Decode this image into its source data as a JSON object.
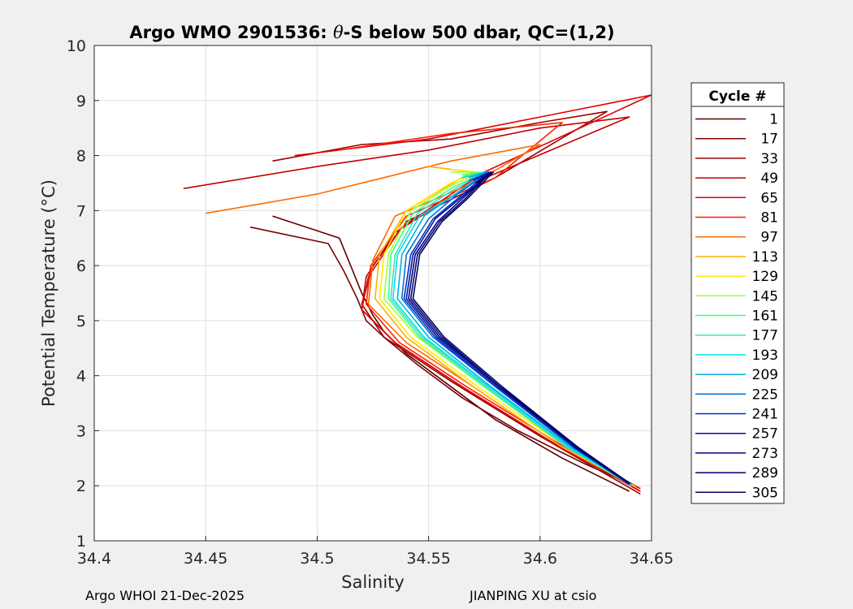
{
  "chart_data": {
    "type": "line",
    "title_prefix": "Argo WMO 2901536: ",
    "title_theta": "θ",
    "title_suffix": "-S below 500 dbar,  QC=(1,2)",
    "xlabel": "Salinity",
    "ylabel": "Potential Temperature (°C)",
    "xlim": [
      34.4,
      34.65
    ],
    "ylim": [
      1,
      10
    ],
    "xticks": [
      34.4,
      34.45,
      34.5,
      34.55,
      34.6,
      34.65
    ],
    "xtick_labels": [
      "34.4",
      "34.45",
      "34.5",
      "34.55",
      "34.6",
      "34.65"
    ],
    "yticks": [
      1,
      2,
      3,
      4,
      5,
      6,
      7,
      8,
      9,
      10
    ],
    "ytick_labels": [
      "1",
      "2",
      "3",
      "4",
      "5",
      "6",
      "7",
      "8",
      "9",
      "10"
    ],
    "grid": true,
    "legend_title": "Cycle #",
    "legend_position": "outside-right",
    "series": [
      {
        "name": "1",
        "color": "#5a0000",
        "salinity": [
          34.48,
          34.51,
          34.515,
          34.52,
          34.525,
          34.53,
          34.54,
          34.56,
          34.58,
          34.61,
          34.64
        ],
        "theta": [
          6.9,
          6.5,
          6.0,
          5.5,
          5.1,
          4.8,
          4.4,
          3.8,
          3.2,
          2.5,
          1.9
        ]
      },
      {
        "name": "17",
        "color": "#7a0000",
        "salinity": [
          34.47,
          34.505,
          34.512,
          34.518,
          34.522,
          34.53,
          34.545,
          34.565,
          34.59,
          34.62,
          34.645
        ],
        "theta": [
          6.7,
          6.4,
          5.9,
          5.4,
          5.0,
          4.7,
          4.2,
          3.6,
          3.0,
          2.4,
          1.95
        ]
      },
      {
        "name": "33",
        "color": "#9c0000",
        "salinity": [
          34.48,
          34.52,
          34.56,
          34.6,
          34.63,
          34.58,
          34.54,
          34.525,
          34.52,
          34.53,
          34.56,
          34.6,
          34.645
        ],
        "theta": [
          7.9,
          8.2,
          8.3,
          8.6,
          8.8,
          7.6,
          6.8,
          6.0,
          5.3,
          4.7,
          3.9,
          2.9,
          1.85
        ]
      },
      {
        "name": "49",
        "color": "#c00000",
        "salinity": [
          34.44,
          34.5,
          34.55,
          34.6,
          34.64,
          34.57,
          34.535,
          34.522,
          34.52,
          34.535,
          34.565,
          34.605,
          34.645
        ],
        "theta": [
          7.4,
          7.8,
          8.1,
          8.5,
          8.7,
          7.5,
          6.6,
          5.8,
          5.2,
          4.6,
          3.8,
          2.8,
          1.9
        ]
      },
      {
        "name": "65",
        "color": "#e00000",
        "salinity": [
          34.49,
          34.55,
          34.6,
          34.65,
          34.575,
          34.538,
          34.523,
          34.52,
          34.535,
          34.565,
          34.605,
          34.645
        ],
        "theta": [
          8.0,
          8.3,
          8.7,
          9.1,
          7.7,
          6.7,
          5.8,
          5.2,
          4.6,
          3.8,
          2.8,
          1.9
        ]
      },
      {
        "name": "81",
        "color": "#ff2000",
        "salinity": [
          34.51,
          34.56,
          34.61,
          34.58,
          34.54,
          34.524,
          34.522,
          34.537,
          34.567,
          34.607,
          34.645
        ],
        "theta": [
          8.1,
          8.4,
          8.6,
          7.6,
          6.9,
          6.0,
          5.3,
          4.6,
          3.8,
          2.8,
          1.95
        ]
      },
      {
        "name": "97",
        "color": "#ff6a00",
        "salinity": [
          34.45,
          34.5,
          34.53,
          34.56,
          34.6,
          34.57,
          34.535,
          34.525,
          34.523,
          34.54,
          34.57,
          34.61,
          34.643
        ],
        "theta": [
          6.95,
          7.3,
          7.6,
          7.9,
          8.2,
          7.5,
          6.9,
          6.1,
          5.3,
          4.6,
          3.8,
          2.7,
          1.98
        ]
      },
      {
        "name": "113",
        "color": "#ffb000",
        "salinity": [
          34.55,
          34.57,
          34.565,
          34.54,
          34.528,
          34.526,
          34.54,
          34.57,
          34.61,
          34.643
        ],
        "theta": [
          7.8,
          7.7,
          7.6,
          7.0,
          6.2,
          5.4,
          4.7,
          3.8,
          2.7,
          1.98
        ]
      },
      {
        "name": "129",
        "color": "#ffee00",
        "salinity": [
          34.56,
          34.572,
          34.56,
          34.54,
          34.53,
          34.528,
          34.542,
          34.572,
          34.612,
          34.642
        ],
        "theta": [
          7.75,
          7.7,
          7.5,
          7.0,
          6.2,
          5.4,
          4.7,
          3.8,
          2.7,
          2.0
        ]
      },
      {
        "name": "145",
        "color": "#a0ff40",
        "salinity": [
          34.56,
          34.573,
          34.56,
          34.542,
          34.532,
          34.53,
          34.545,
          34.575,
          34.612,
          34.642
        ],
        "theta": [
          7.7,
          7.7,
          7.45,
          7.0,
          6.2,
          5.4,
          4.7,
          3.8,
          2.7,
          2.0
        ]
      },
      {
        "name": "161",
        "color": "#40ff80",
        "salinity": [
          34.565,
          34.575,
          34.56,
          34.543,
          34.533,
          34.532,
          34.546,
          34.575,
          34.612,
          34.641
        ],
        "theta": [
          7.65,
          7.7,
          7.4,
          6.95,
          6.2,
          5.4,
          4.7,
          3.8,
          2.7,
          2.0
        ]
      },
      {
        "name": "177",
        "color": "#40e0c0",
        "salinity": [
          34.565,
          34.575,
          34.56,
          34.545,
          34.535,
          34.533,
          34.547,
          34.576,
          34.612,
          34.641
        ],
        "theta": [
          7.6,
          7.7,
          7.35,
          6.95,
          6.2,
          5.4,
          4.7,
          3.8,
          2.7,
          2.02
        ]
      },
      {
        "name": "193",
        "color": "#00e0f0",
        "salinity": [
          34.565,
          34.576,
          34.562,
          34.546,
          34.536,
          34.534,
          34.548,
          34.577,
          34.613,
          34.641
        ],
        "theta": [
          7.6,
          7.7,
          7.3,
          6.9,
          6.2,
          5.4,
          4.7,
          3.8,
          2.7,
          2.02
        ]
      },
      {
        "name": "209",
        "color": "#00b0e0",
        "salinity": [
          34.568,
          34.576,
          34.562,
          34.548,
          34.538,
          34.536,
          34.55,
          34.578,
          34.614,
          34.641
        ],
        "theta": [
          7.6,
          7.7,
          7.3,
          6.9,
          6.2,
          5.4,
          4.7,
          3.8,
          2.7,
          2.02
        ]
      },
      {
        "name": "225",
        "color": "#0070e0",
        "salinity": [
          34.568,
          34.577,
          34.563,
          34.55,
          34.54,
          34.538,
          34.552,
          34.58,
          34.615,
          34.641
        ],
        "theta": [
          7.55,
          7.7,
          7.3,
          6.85,
          6.2,
          5.4,
          4.7,
          3.8,
          2.7,
          2.03
        ]
      },
      {
        "name": "241",
        "color": "#0030c0",
        "salinity": [
          34.57,
          34.577,
          34.564,
          34.552,
          34.542,
          34.539,
          34.553,
          34.58,
          34.615,
          34.64
        ],
        "theta": [
          7.55,
          7.7,
          7.25,
          6.85,
          6.2,
          5.4,
          4.7,
          3.8,
          2.7,
          2.03
        ]
      },
      {
        "name": "257",
        "color": "#0010a0",
        "salinity": [
          34.57,
          34.578,
          34.565,
          34.553,
          34.543,
          34.54,
          34.554,
          34.581,
          34.616,
          34.64
        ],
        "theta": [
          7.55,
          7.7,
          7.25,
          6.85,
          6.2,
          5.4,
          4.7,
          3.8,
          2.7,
          2.03
        ]
      },
      {
        "name": "273",
        "color": "#000080",
        "salinity": [
          34.571,
          34.578,
          34.566,
          34.554,
          34.544,
          34.541,
          34.555,
          34.582,
          34.616,
          34.64
        ],
        "theta": [
          7.5,
          7.7,
          7.25,
          6.8,
          6.2,
          5.4,
          4.7,
          3.8,
          2.7,
          2.04
        ]
      },
      {
        "name": "289",
        "color": "#000070",
        "salinity": [
          34.572,
          34.578,
          34.566,
          34.555,
          34.545,
          34.542,
          34.556,
          34.582,
          34.617,
          34.64
        ],
        "theta": [
          7.5,
          7.7,
          7.2,
          6.8,
          6.2,
          5.4,
          4.7,
          3.8,
          2.7,
          2.04
        ]
      },
      {
        "name": "305",
        "color": "#000060",
        "salinity": [
          34.572,
          34.579,
          34.567,
          34.556,
          34.546,
          34.543,
          34.557,
          34.583,
          34.617,
          34.64
        ],
        "theta": [
          7.5,
          7.7,
          7.2,
          6.8,
          6.2,
          5.4,
          4.7,
          3.8,
          2.7,
          2.05
        ]
      }
    ]
  },
  "footer": {
    "left": "Argo WHOI 21-Dec-2025",
    "right": "JIANPING XU at csio"
  }
}
